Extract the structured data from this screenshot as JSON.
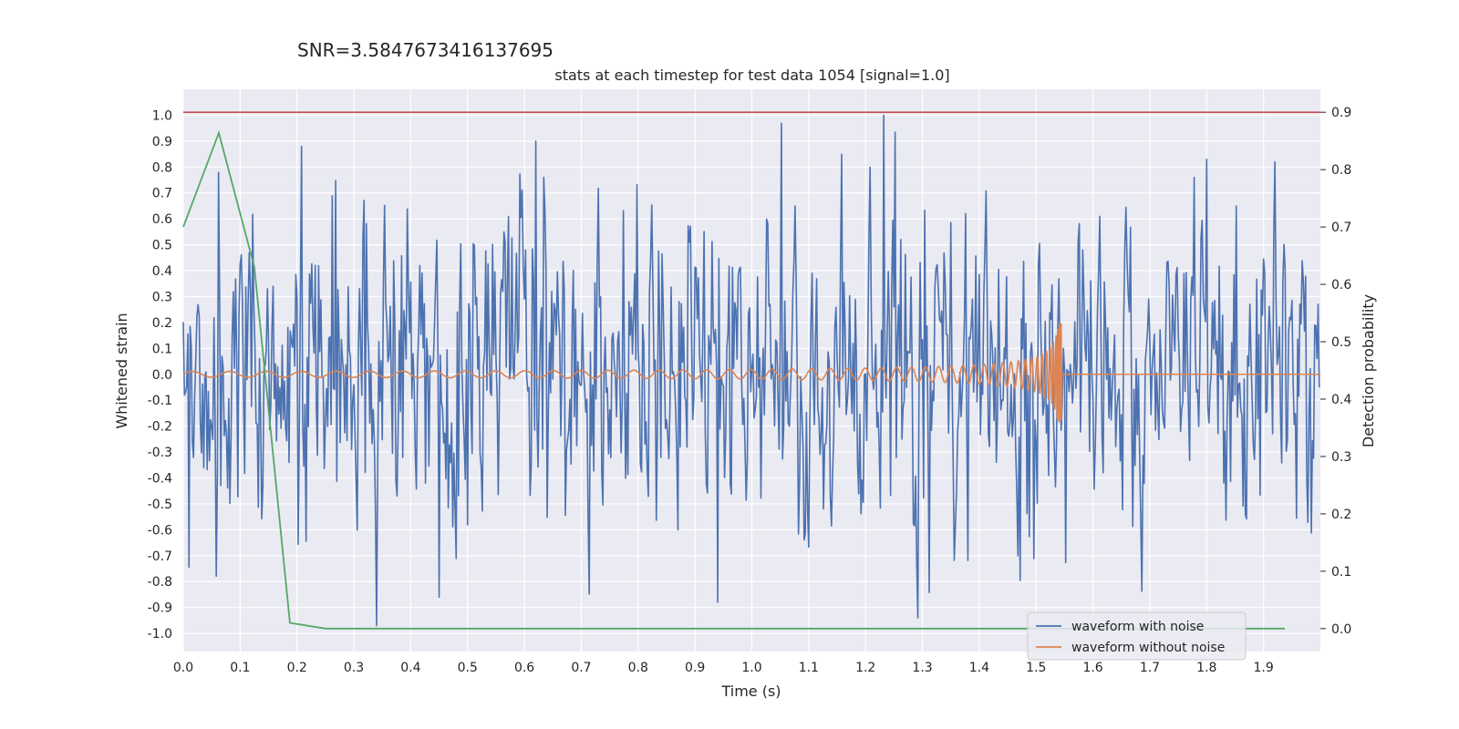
{
  "chart_data": {
    "type": "line",
    "snr_text": "SNR=3.5847673416137695",
    "title": "stats at each timestep for test data 1054 [signal=1.0]",
    "xlabel": "Time (s)",
    "ylabel": "Whitened strain",
    "y2label": "Detection probability",
    "xlim": [
      0.0,
      2.0
    ],
    "ylim": [
      -1.07,
      1.1
    ],
    "y2lim": [
      -0.04,
      0.94
    ],
    "x_ticks": [
      "0.0",
      "0.1",
      "0.2",
      "0.3",
      "0.4",
      "0.5",
      "0.6",
      "0.7",
      "0.8",
      "0.9",
      "1.0",
      "1.1",
      "1.2",
      "1.3",
      "1.4",
      "1.5",
      "1.6",
      "1.7",
      "1.8",
      "1.9"
    ],
    "y_ticks": [
      "1.0",
      "0.9",
      "0.8",
      "0.7",
      "0.6",
      "0.5",
      "0.4",
      "0.3",
      "0.2",
      "0.1",
      "0.0",
      "-0.1",
      "-0.2",
      "-0.3",
      "-0.4",
      "-0.5",
      "-0.6",
      "-0.7",
      "-0.8",
      "-0.9",
      "-1.0"
    ],
    "y2_ticks": [
      "0.9",
      "0.8",
      "0.7",
      "0.6",
      "0.5",
      "0.4",
      "0.3",
      "0.2",
      "0.1",
      "0.0"
    ],
    "grid": true,
    "legend_position": "lower-right",
    "threshold": {
      "y2": 0.9,
      "color": "#c44e52"
    },
    "series": [
      {
        "name": "waveform with noise",
        "color": "#4c72b0",
        "axis": "left",
        "description": "noise-dominated whitened strain, amplitude mostly within ±0.6, peaks near ±1.0",
        "max": 1.0,
        "min": -0.97,
        "sample_count": 1000
      },
      {
        "name": "waveform without noise",
        "color": "#dd8452",
        "axis": "left",
        "description": "inspiral chirp growing in amplitude and frequency, merger near t=1.54 s, zero afterwards",
        "merger_time": 1.545,
        "peak_amplitude": 0.2
      },
      {
        "name": "",
        "color": "#55a868",
        "axis": "right",
        "x": [
          0.0,
          0.0625,
          0.125,
          0.1875,
          0.25,
          0.3125,
          0.375,
          0.4375,
          0.5,
          0.5625,
          0.625,
          0.6875,
          0.75,
          0.8125,
          0.875,
          0.9375,
          1.0,
          1.0625,
          1.125,
          1.1875,
          1.25,
          1.3125,
          1.375,
          1.4375,
          1.5,
          1.5625,
          1.625,
          1.6875,
          1.75,
          1.8125,
          1.875,
          1.9375
        ],
        "values": [
          0.7,
          0.864,
          0.63,
          0.01,
          0.0,
          0.0,
          0.0,
          0.0,
          0.0,
          0.0,
          0.0,
          0.0,
          0.0,
          0.0,
          0.0,
          0.0,
          0.0,
          0.0,
          0.0,
          0.0,
          0.0,
          0.0,
          0.0,
          0.0,
          0.0,
          0.0,
          0.0,
          0.0,
          0.0,
          0.0,
          0.0,
          0.0
        ]
      }
    ],
    "colors": {
      "background": "#eaeaf2",
      "grid": "#ffffff",
      "text": "#262626"
    }
  }
}
